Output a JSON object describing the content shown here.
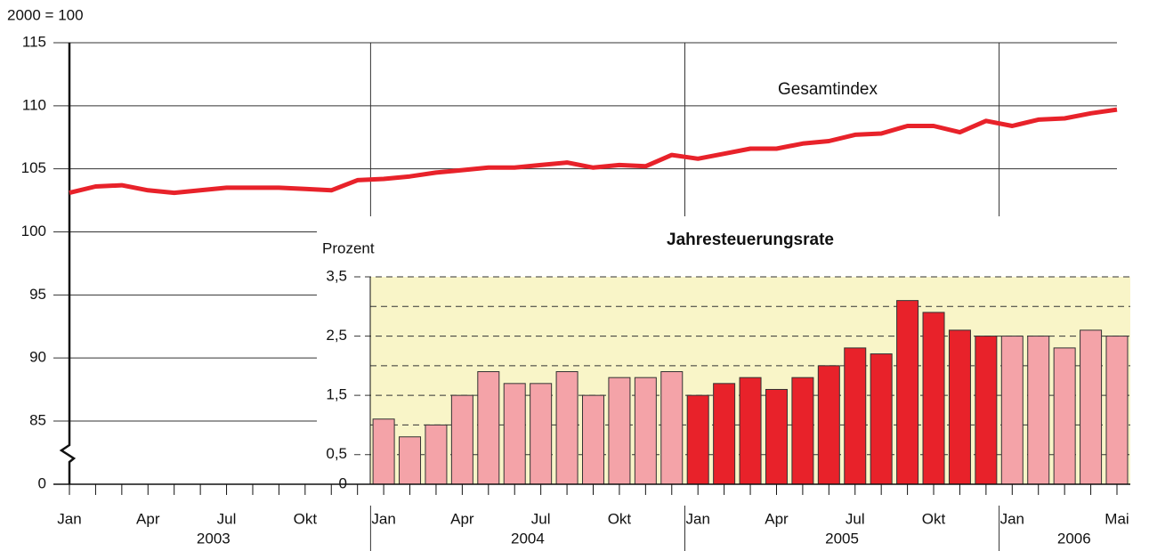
{
  "chart_data": [
    {
      "type": "line",
      "y_label": "2000 = 100",
      "annotation": "Gesamtindex",
      "categories": [
        "Jan",
        null,
        null,
        "Apr",
        null,
        null,
        "Jul",
        null,
        null,
        "Okt",
        null,
        null,
        "Jan",
        null,
        null,
        "Apr",
        null,
        null,
        "Jul",
        null,
        null,
        "Okt",
        null,
        null,
        "Jan",
        null,
        null,
        "Apr",
        null,
        null,
        "Jul",
        null,
        null,
        "Okt",
        null,
        null,
        "Jan",
        null,
        null,
        null,
        "Mai"
      ],
      "year_labels": [
        "2003",
        "2004",
        "2005",
        "2006"
      ],
      "series": [
        {
          "name": "Gesamtindex",
          "color": "#e8222a",
          "values": [
            103.1,
            103.6,
            103.7,
            103.3,
            103.1,
            103.3,
            103.5,
            103.5,
            103.5,
            103.4,
            103.3,
            104.1,
            104.2,
            104.4,
            104.7,
            104.9,
            105.1,
            105.1,
            105.3,
            105.5,
            105.1,
            105.3,
            105.2,
            106.1,
            105.8,
            106.2,
            106.6,
            106.6,
            107.0,
            107.2,
            107.7,
            107.8,
            108.4,
            108.4,
            107.9,
            108.8,
            108.4,
            108.9,
            109.0,
            109.4,
            109.7
          ]
        }
      ],
      "ylim": [
        0,
        115
      ],
      "yticks": [
        0,
        85,
        90,
        95,
        100,
        105,
        110,
        115
      ],
      "axis_break": [
        0,
        85
      ],
      "grid": true
    },
    {
      "type": "bar",
      "title": "Jahresteuerungsrate",
      "y_label": "Prozent",
      "values": [
        1.1,
        0.8,
        1.0,
        1.5,
        1.9,
        1.7,
        1.7,
        1.9,
        1.5,
        1.8,
        1.8,
        1.9,
        1.5,
        1.7,
        1.8,
        1.6,
        1.8,
        2.0,
        2.3,
        2.2,
        3.1,
        2.9,
        2.6,
        2.5,
        2.5,
        2.5,
        2.3,
        2.6,
        2.5
      ],
      "colors": [
        "#f4a3a8",
        "#f4a3a8",
        "#f4a3a8",
        "#f4a3a8",
        "#f4a3a8",
        "#f4a3a8",
        "#f4a3a8",
        "#f4a3a8",
        "#f4a3a8",
        "#f4a3a8",
        "#f4a3a8",
        "#f4a3a8",
        "#e8222a",
        "#e8222a",
        "#e8222a",
        "#e8222a",
        "#e8222a",
        "#e8222a",
        "#e8222a",
        "#e8222a",
        "#e8222a",
        "#e8222a",
        "#e8222a",
        "#e8222a",
        "#f4a3a8",
        "#f4a3a8",
        "#f4a3a8",
        "#f4a3a8",
        "#f4a3a8"
      ],
      "ylim": [
        0,
        3.5
      ],
      "yticks": [
        0,
        {
          "value": 0.5,
          "label": "0,5"
        },
        {
          "value": 1.5,
          "label": "1,5"
        },
        {
          "value": 2.5,
          "label": "2,5"
        },
        {
          "value": 3.5,
          "label": "3,5"
        }
      ],
      "minor_yticks": [
        1,
        2,
        3
      ],
      "grid": true,
      "background": "#f9f5c8"
    }
  ]
}
